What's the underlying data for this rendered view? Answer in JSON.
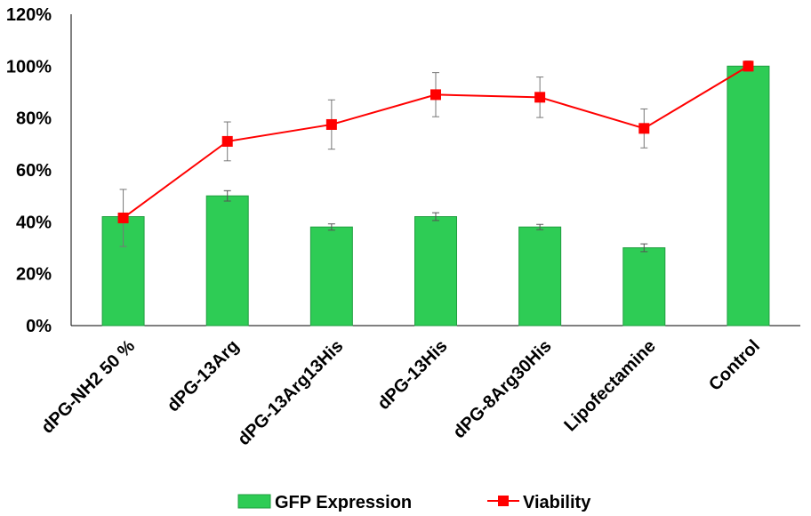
{
  "chart_data": {
    "type": "bar+line",
    "categories": [
      "dPG-NH2 50 %",
      "dPG-13Arg",
      "dPG-13Arg13His",
      "dPG-13His",
      "dPG-8Arg30His",
      "Lipofectamine",
      "Control"
    ],
    "series": [
      {
        "name": "GFP Expression",
        "type": "bar",
        "color": "#2ecc55",
        "values": [
          42,
          50,
          38,
          42,
          38,
          30,
          100
        ],
        "errors": [
          0,
          2,
          1.2,
          1.5,
          1,
          1.5,
          0
        ]
      },
      {
        "name": "Viability",
        "type": "line",
        "color": "#ff0000",
        "values": [
          41.5,
          71,
          77.5,
          89,
          88,
          76,
          100
        ],
        "errors": [
          11,
          7.5,
          9.5,
          8.5,
          7.8,
          7.5,
          2
        ]
      }
    ],
    "y_ticks": [
      "0%",
      "20%",
      "40%",
      "60%",
      "80%",
      "100%",
      "120%"
    ],
    "ylim": [
      0,
      120
    ],
    "grid": false,
    "legend_position": "bottom"
  }
}
